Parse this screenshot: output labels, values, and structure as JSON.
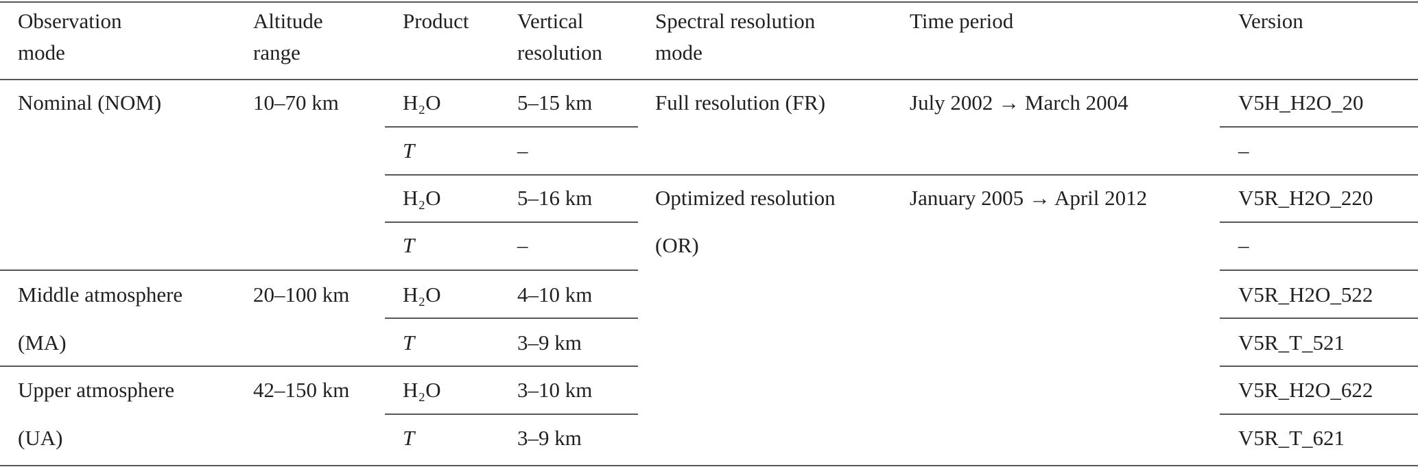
{
  "header": [
    [
      "Observation",
      "mode"
    ],
    [
      "Altitude",
      "range"
    ],
    [
      "Product"
    ],
    [
      "Vertical",
      "resolution"
    ],
    [
      "Spectral resolution",
      "mode"
    ],
    [
      "Time period"
    ],
    [
      "Version"
    ]
  ],
  "rows": [
    {
      "observation_mode": "Nominal (NOM)",
      "altitude_range": "10–70 km",
      "product": "H₂O",
      "vertical_resolution": "5–15 km",
      "spectral_resolution_mode": "Full resolution (FR)",
      "time_period": "July 2002 → March 2004",
      "version": "V5H_H2O_20"
    },
    {
      "product": "T",
      "vertical_resolution": "–",
      "version": "–"
    },
    {
      "product": "H₂O",
      "vertical_resolution": "5–16 km",
      "spectral_resolution_mode": "Optimized resolution",
      "time_period": "January 2005 → April 2012",
      "version": "V5R_H2O_220"
    },
    {
      "product": "T",
      "vertical_resolution": "–",
      "spectral_resolution_mode": "(OR)",
      "version": "–"
    },
    {
      "observation_mode": "Middle atmosphere",
      "altitude_range": "20–100 km",
      "product": "H₂O",
      "vertical_resolution": "4–10 km",
      "version": "V5R_H2O_522"
    },
    {
      "observation_mode": "(MA)",
      "product": "T",
      "vertical_resolution": "3–9 km",
      "version": "V5R_T_521"
    },
    {
      "observation_mode": "Upper atmosphere",
      "altitude_range": "42–150 km",
      "product": "H₂O",
      "vertical_resolution": "3–10 km",
      "version": "V5R_H2O_622"
    },
    {
      "observation_mode": "(UA)",
      "product": "T",
      "vertical_resolution": "3–9 km",
      "version": "V5R_T_621"
    }
  ]
}
